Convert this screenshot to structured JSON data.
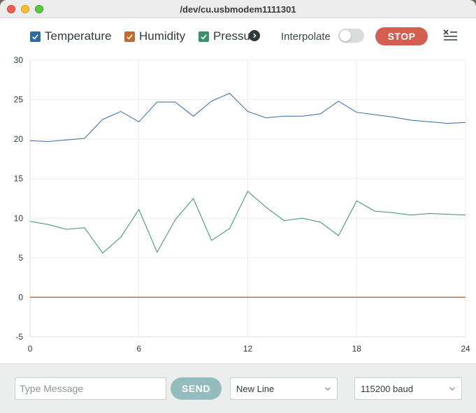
{
  "window": {
    "title": "/dev/cu.usbmodem1111301"
  },
  "legend": [
    {
      "label": "Temperature",
      "color": "#2f6aa3",
      "checked": true
    },
    {
      "label": "Humidity",
      "color": "#c26b2a",
      "checked": true
    },
    {
      "label": "Pressure",
      "color": "#3b8f6a",
      "checked": true
    }
  ],
  "toolbar": {
    "interpolate_label": "Interpolate",
    "interpolate_on": false,
    "stop_label": "STOP"
  },
  "footer": {
    "message_placeholder": "Type Message",
    "send_label": "SEND",
    "line_ending": "New Line",
    "baud_rate": "115200 baud"
  },
  "chart_data": {
    "type": "line",
    "x": [
      0,
      1,
      2,
      3,
      4,
      5,
      6,
      7,
      8,
      9,
      10,
      11,
      12,
      13,
      14,
      15,
      16,
      17,
      18,
      19,
      20,
      21,
      22,
      23,
      24
    ],
    "xlim": [
      0,
      24
    ],
    "ylim": [
      -5,
      30
    ],
    "xticks": [
      0,
      6,
      12,
      18,
      24
    ],
    "yticks": [
      -5,
      0,
      5,
      10,
      15,
      20,
      25,
      30
    ],
    "grid": true,
    "series": [
      {
        "name": "Temperature",
        "color": "#2f6aa3",
        "values": [
          19.8,
          19.7,
          19.9,
          20.1,
          22.5,
          23.5,
          22.2,
          24.7,
          24.7,
          22.9,
          24.8,
          25.8,
          23.5,
          22.7,
          22.9,
          22.9,
          23.2,
          24.8,
          23.4,
          23.1,
          22.8,
          22.4,
          22.2,
          22.0,
          22.1
        ]
      },
      {
        "name": "Humidity",
        "color": "#c26b2a",
        "values": [
          0,
          0,
          0,
          0,
          0,
          0,
          0,
          0,
          0,
          0,
          0,
          0,
          0,
          0,
          0,
          0,
          0,
          0,
          0,
          0,
          0,
          0,
          0,
          0,
          0
        ]
      },
      {
        "name": "Pressure",
        "color": "#3b8f6a",
        "values": [
          9.6,
          9.2,
          8.6,
          8.8,
          5.6,
          7.6,
          11.1,
          5.7,
          9.8,
          12.5,
          7.2,
          8.7,
          13.4,
          11.4,
          9.7,
          10.0,
          9.5,
          7.8,
          12.2,
          10.9,
          10.7,
          10.4,
          10.6,
          10.5,
          10.4
        ]
      }
    ]
  }
}
